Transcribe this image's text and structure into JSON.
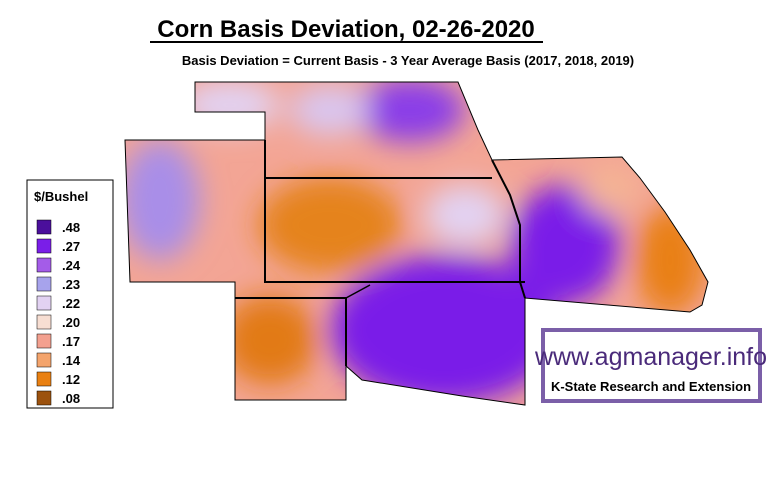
{
  "header": {
    "title": "Corn Basis Deviation, 02-26-2020",
    "subtitle": "Basis Deviation = Current Basis - 3 Year Average Basis (2017, 2018, 2019)"
  },
  "legend": {
    "title": "$/Bushel",
    "items": [
      {
        "label": ".48",
        "color": "#4b0f9c"
      },
      {
        "label": ".27",
        "color": "#7a1ee8"
      },
      {
        "label": ".24",
        "color": "#a45ce8"
      },
      {
        "label": ".23",
        "color": "#a7a3ec"
      },
      {
        "label": ".22",
        "color": "#e2d2f2"
      },
      {
        "label": ".20",
        "color": "#f7ded2"
      },
      {
        "label": ".17",
        "color": "#f3a08f"
      },
      {
        "label": ".14",
        "color": "#f4a46c"
      },
      {
        "label": ".12",
        "color": "#e98012"
      },
      {
        "label": ".08",
        "color": "#9c520e"
      }
    ]
  },
  "watermark": {
    "url": "www.agmanager.info",
    "org": "K-State Research and Extension"
  }
}
